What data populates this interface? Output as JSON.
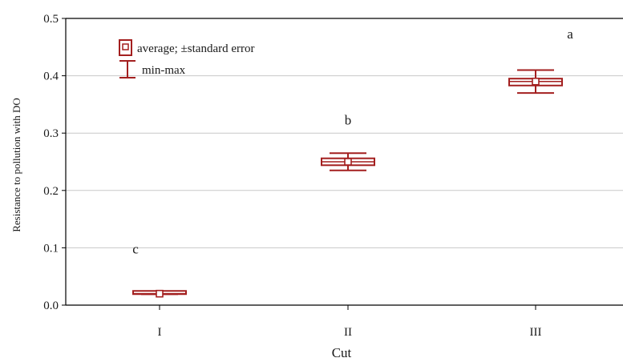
{
  "chart_data": {
    "type": "box",
    "xlabel": "Cut",
    "ylabel": "Resistance to pollution with DO",
    "ylim": [
      0.0,
      0.5
    ],
    "yticks": [
      "0.0",
      "0.1",
      "0.2",
      "0.3",
      "0.4",
      "0.5"
    ],
    "grid": true,
    "color": "#a31f1f",
    "categories": [
      "I",
      "II",
      "III"
    ],
    "groups": [
      {
        "category": "I",
        "mean": 0.02,
        "se_low": 0.018,
        "se_high": 0.022,
        "min": 0.019,
        "max": 0.021,
        "letter": "c"
      },
      {
        "category": "II",
        "mean": 0.25,
        "se_low": 0.244,
        "se_high": 0.256,
        "min": 0.235,
        "max": 0.265,
        "letter": "b"
      },
      {
        "category": "III",
        "mean": 0.39,
        "se_low": 0.383,
        "se_high": 0.395,
        "min": 0.37,
        "max": 0.41,
        "letter": "a"
      }
    ],
    "legend": {
      "placement": "top-left",
      "items": [
        {
          "symbol": "box",
          "label": "average; ±standard error"
        },
        {
          "symbol": "whisker",
          "label": "min-max"
        }
      ]
    }
  }
}
